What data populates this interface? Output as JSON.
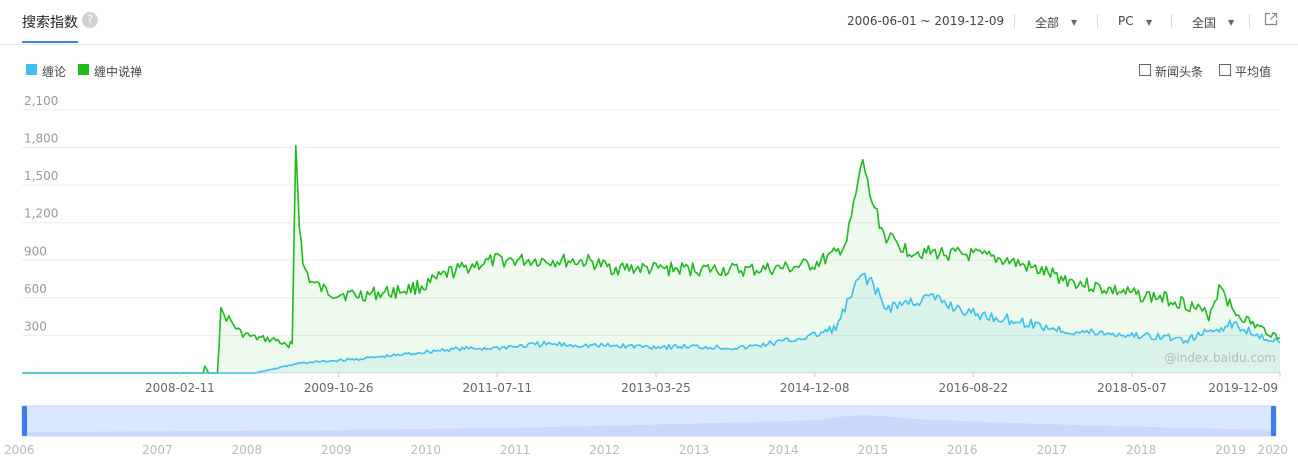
{
  "header": {
    "title": "搜索指数",
    "help_icon": "question-icon",
    "date_range": "2006-06-01 ~ 2019-12-09",
    "region_filter": "全部",
    "device_filter": "PC",
    "area_filter": "全国",
    "export_icon": "external-link-icon"
  },
  "legend": [
    {
      "name": "缠论",
      "color": "#3ec1ef"
    },
    {
      "name": "缠中说禅",
      "color": "#1dbb1d"
    }
  ],
  "options": [
    {
      "label": "新闻头条",
      "checked": false
    },
    {
      "label": "平均值",
      "checked": false
    }
  ],
  "watermark": "@index.baidu.com",
  "chart_data": {
    "type": "area",
    "x_range": [
      "2006-06-01",
      "2019-12-09"
    ],
    "x_tick_labels": [
      "2008-02-11",
      "2009-10-26",
      "2011-07-11",
      "2013-03-25",
      "2014-12-08",
      "2016-08-22",
      "2018-05-07",
      "2019-12-09"
    ],
    "y_tick_labels": [
      "300",
      "600",
      "900",
      "1,200",
      "1,500",
      "1,800",
      "2,100"
    ],
    "ylim": [
      0,
      2100
    ],
    "grid": true,
    "series": [
      {
        "name": "缠中说禅",
        "color": "#1dbb1d",
        "points": [
          [
            "2006-06-01",
            0
          ],
          [
            "2008-05-12",
            0
          ],
          [
            "2008-05-19",
            60
          ],
          [
            "2008-06-02",
            0
          ],
          [
            "2008-07-07",
            0
          ],
          [
            "2008-07-21",
            480
          ],
          [
            "2008-08-11",
            450
          ],
          [
            "2008-09-01",
            400
          ],
          [
            "2008-10-06",
            320
          ],
          [
            "2008-12-01",
            280
          ],
          [
            "2009-03-02",
            260
          ],
          [
            "2009-04-13",
            200
          ],
          [
            "2009-04-27",
            260
          ],
          [
            "2009-05-11",
            1830
          ],
          [
            "2009-05-25",
            1200
          ],
          [
            "2009-06-08",
            860
          ],
          [
            "2009-07-13",
            720
          ],
          [
            "2009-09-07",
            650
          ],
          [
            "2010-01-04",
            620
          ],
          [
            "2010-06-07",
            650
          ],
          [
            "2010-10-04",
            700
          ],
          [
            "2011-01-03",
            800
          ],
          [
            "2011-04-04",
            860
          ],
          [
            "2011-07-11",
            900
          ],
          [
            "2012-01-02",
            900
          ],
          [
            "2012-07-02",
            890
          ],
          [
            "2012-10-01",
            840
          ],
          [
            "2013-03-25",
            830
          ],
          [
            "2013-09-02",
            830
          ],
          [
            "2014-03-03",
            820
          ],
          [
            "2014-09-01",
            840
          ],
          [
            "2014-12-08",
            870
          ],
          [
            "2015-03-02",
            950
          ],
          [
            "2015-04-13",
            1050
          ],
          [
            "2015-06-15",
            1700
          ],
          [
            "2015-07-13",
            1420
          ],
          [
            "2015-09-07",
            1100
          ],
          [
            "2015-12-07",
            980
          ],
          [
            "2016-03-07",
            960
          ],
          [
            "2016-08-22",
            940
          ],
          [
            "2017-01-02",
            900
          ],
          [
            "2017-05-01",
            820
          ],
          [
            "2017-09-04",
            740
          ],
          [
            "2018-01-01",
            680
          ],
          [
            "2018-05-07",
            630
          ],
          [
            "2018-09-03",
            600
          ],
          [
            "2018-12-03",
            560
          ],
          [
            "2019-03-04",
            460
          ],
          [
            "2019-04-22",
            720
          ],
          [
            "2019-06-03",
            500
          ],
          [
            "2019-09-02",
            380
          ],
          [
            "2019-12-09",
            280
          ]
        ]
      },
      {
        "name": "缠论",
        "color": "#3ec1ef",
        "points": [
          [
            "2006-06-01",
            0
          ],
          [
            "2008-12-01",
            0
          ],
          [
            "2009-03-02",
            40
          ],
          [
            "2009-06-01",
            80
          ],
          [
            "2010-01-04",
            110
          ],
          [
            "2010-06-07",
            140
          ],
          [
            "2011-01-03",
            190
          ],
          [
            "2011-07-11",
            200
          ],
          [
            "2012-01-02",
            230
          ],
          [
            "2012-07-02",
            220
          ],
          [
            "2013-03-25",
            210
          ],
          [
            "2013-09-02",
            210
          ],
          [
            "2014-03-03",
            200
          ],
          [
            "2014-09-01",
            260
          ],
          [
            "2014-12-08",
            300
          ],
          [
            "2015-03-02",
            360
          ],
          [
            "2015-06-15",
            800
          ],
          [
            "2015-07-27",
            700
          ],
          [
            "2015-09-07",
            520
          ],
          [
            "2016-03-07",
            600
          ],
          [
            "2016-08-22",
            470
          ],
          [
            "2017-01-02",
            430
          ],
          [
            "2017-05-01",
            380
          ],
          [
            "2017-09-04",
            330
          ],
          [
            "2018-01-01",
            320
          ],
          [
            "2018-05-07",
            300
          ],
          [
            "2018-09-03",
            290
          ],
          [
            "2018-12-03",
            260
          ],
          [
            "2019-03-04",
            330
          ],
          [
            "2019-06-03",
            390
          ],
          [
            "2019-09-02",
            320
          ],
          [
            "2019-12-09",
            240
          ]
        ]
      }
    ]
  },
  "timeline": {
    "year_labels": [
      "2006",
      "2007",
      "2008",
      "2009",
      "2010",
      "2011",
      "2012",
      "2013",
      "2014",
      "2015",
      "2016",
      "2017",
      "2018",
      "2019",
      "2020"
    ]
  }
}
